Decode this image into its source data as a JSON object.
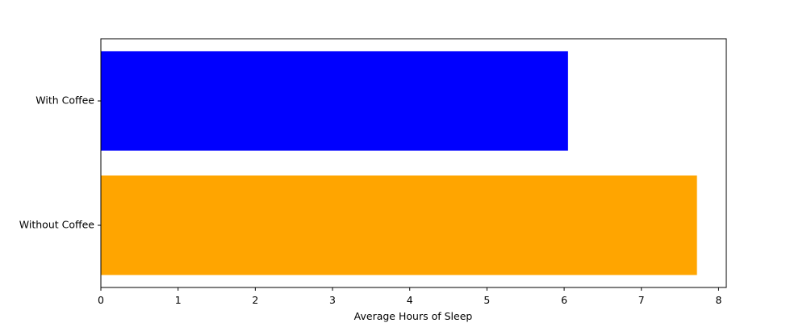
{
  "chart_data": {
    "type": "bar",
    "orientation": "horizontal",
    "title": "",
    "xlabel": "Average Hours of Sleep",
    "ylabel": "",
    "categories": [
      "With Coffee",
      "Without Coffee"
    ],
    "values": [
      6.05,
      7.72
    ],
    "colors": [
      "#0000ff",
      "#ffa500"
    ],
    "xlim": [
      0,
      8.1
    ],
    "xticks": [
      0,
      1,
      2,
      3,
      4,
      5,
      6,
      7,
      8
    ],
    "grid": false,
    "legend": "none"
  }
}
